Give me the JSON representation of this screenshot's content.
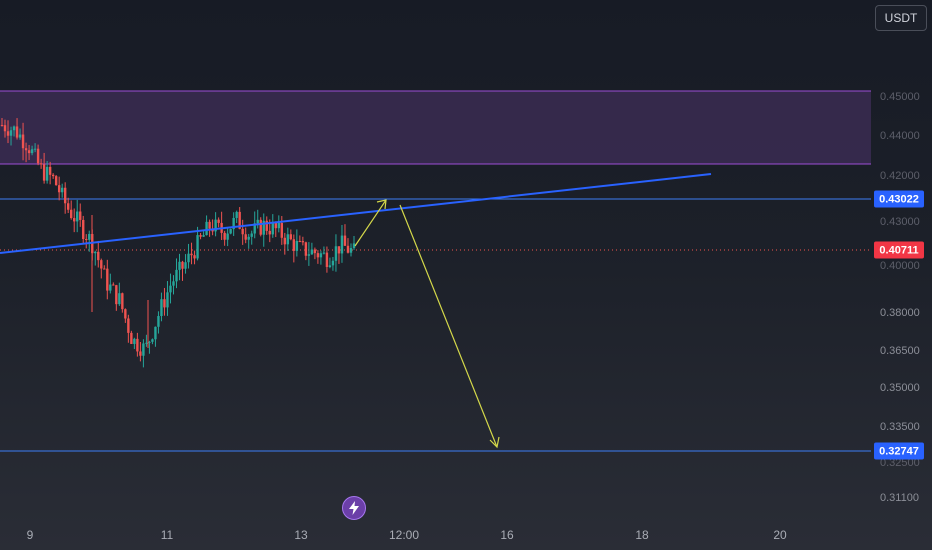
{
  "toolbar": {
    "currency_label": "USDT"
  },
  "colors": {
    "zone_fill": "#3b2b52",
    "zone_border": "#9c4dd6",
    "trendline": "#2962ff",
    "horizontal_level": "#3d7df5",
    "projection_arrow": "#d4d84a",
    "candle_up": "#26a69a",
    "candle_down": "#ef5350",
    "current_price_line": "#ef5350",
    "current_price_badge": "#f23645",
    "level_badge": "#2962ff"
  },
  "price_axis": {
    "ticks": [
      "0.44000",
      "0.40000",
      "0.38000",
      "0.36500",
      "0.35000",
      "0.33500",
      "0.31100"
    ],
    "faded_ticks": [
      "0.45000",
      "0.44000",
      "0.43000",
      "0.42000"
    ]
  },
  "price_badges": {
    "upper_level": "0.43022",
    "current_price": "0.40711",
    "lower_level": "0.32747"
  },
  "time_axis": {
    "ticks": [
      "9",
      "11",
      "13",
      "12:00",
      "16",
      "18",
      "20"
    ]
  },
  "icons": {
    "alert": "lightning-bolt-icon"
  },
  "chart_data": {
    "type": "candlestick",
    "x": [
      "9",
      "11",
      "13",
      "12:00",
      "16",
      "18",
      "20"
    ],
    "current_price": 0.40711,
    "levels": [
      0.43022,
      0.32747
    ],
    "resistance_zone": [
      0.44,
      0.46
    ],
    "close_path": [
      0.458,
      0.456,
      0.45,
      0.44,
      0.436,
      0.425,
      0.418,
      0.41,
      0.395,
      0.388,
      0.372,
      0.368,
      0.382,
      0.395,
      0.402,
      0.41,
      0.418,
      0.415,
      0.42,
      0.414,
      0.418,
      0.416,
      0.412,
      0.408,
      0.407,
      0.405,
      0.41,
      0.407
    ]
  }
}
